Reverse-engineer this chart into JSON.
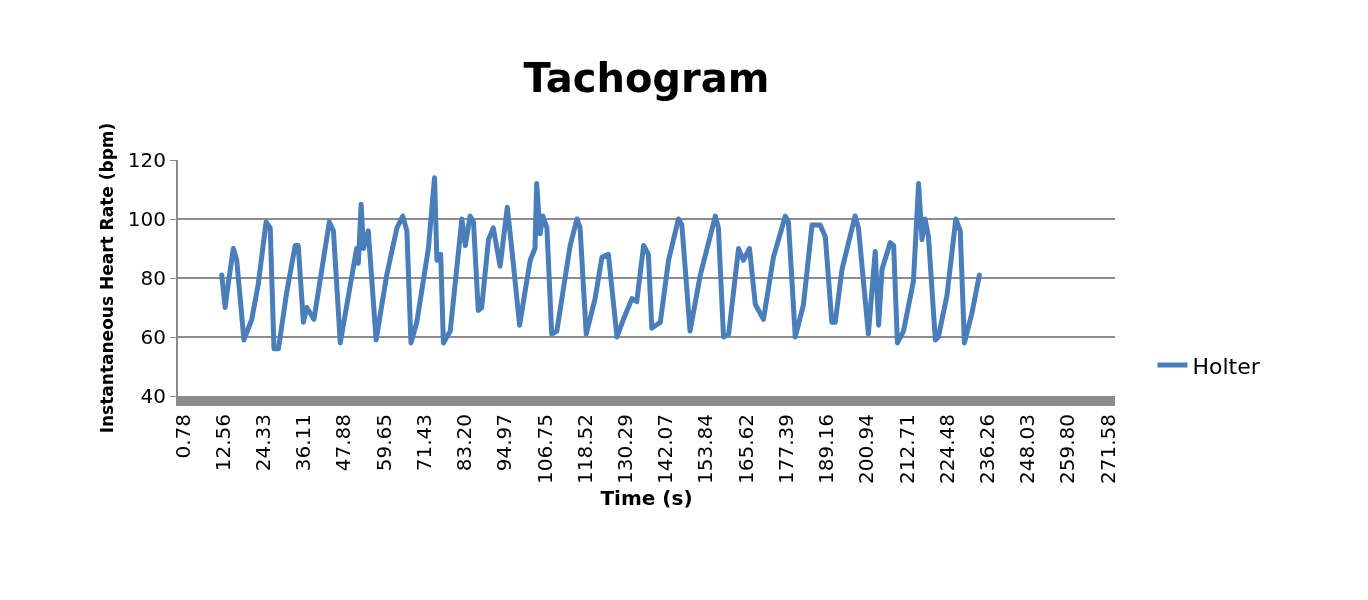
{
  "chart_data": {
    "type": "line",
    "title": "Tachogram",
    "xlabel": "Time (s)",
    "ylabel": "Instantaneous Heart Rate (bpm)",
    "xlim": [
      -0.7,
      273.6
    ],
    "xticks": [
      0.78,
      12.56,
      24.33,
      36.11,
      47.88,
      59.65,
      71.43,
      {
        "value": 83.2,
        "label": "83.20"
      },
      94.97,
      106.75,
      118.52,
      130.29,
      142.07,
      153.84,
      165.62,
      177.39,
      189.16,
      200.94,
      212.71,
      224.48,
      236.26,
      248.03,
      {
        "value": 259.8,
        "label": "259.80"
      },
      271.58
    ],
    "ylim": [
      40,
      120
    ],
    "yticks": [
      40,
      60,
      80,
      100,
      120
    ],
    "grid": "y",
    "legend": "right",
    "marker": "none",
    "line_style": "solid",
    "series": [
      {
        "name": "Holter",
        "color": "#4a7ebb",
        "x": [
          12.1,
          13.1,
          14.0,
          15.5,
          16.5,
          18.6,
          20.9,
          22.8,
          25.1,
          26.3,
          27.4,
          28.7,
          31.1,
          33.6,
          34.5,
          36.0,
          37.0,
          39.1,
          43.6,
          44.8,
          46.8,
          51.6,
          52.1,
          52.9,
          53.6,
          55.0,
          57.3,
          60.4,
          63.4,
          65.1,
          66.3,
          67.5,
          69.2,
          72.6,
          74.4,
          75.1,
          76.2,
          77.0,
          79.0,
          82.4,
          83.4,
          84.8,
          85.8,
          87.2,
          88.2,
          90.2,
          91.6,
          93.6,
          95.7,
          97.0,
          99.3,
          102.4,
          103.8,
          104.3,
          105.3,
          106.1,
          107.3,
          108.7,
          110.2,
          114.1,
          116.1,
          117.0,
          118.8,
          121.4,
          123.4,
          125.3,
          127.8,
          129.7,
          132.2,
          133.6,
          135.6,
          137.0,
          138.0,
          140.5,
          142.9,
          145.8,
          146.8,
          149.2,
          152.2,
          156.6,
          157.5,
          159.0,
          160.5,
          163.4,
          164.8,
          166.6,
          168.3,
          170.7,
          173.6,
          177.1,
          178.0,
          180.0,
          182.4,
          184.9,
          187.3,
          188.8,
          190.7,
          191.7,
          193.7,
          197.5,
          198.5,
          201.4,
          203.4,
          204.4,
          205.4,
          207.8,
          208.8,
          209.9,
          211.7,
          214.6,
          216.1,
          217.1,
          218.0,
          219.0,
          221.0,
          221.9,
          224.4,
          227.0,
          228.3,
          229.5,
          231.7,
          233.9
        ],
        "values": [
          81,
          70,
          78,
          90,
          86,
          59,
          66,
          78,
          99,
          97,
          56,
          56,
          75,
          91,
          91,
          65,
          70,
          66,
          99,
          96,
          58,
          90,
          85,
          105,
          90,
          96,
          59,
          81,
          97,
          101,
          96,
          58,
          65,
          90,
          114,
          86,
          88,
          58,
          62,
          100,
          91,
          101,
          99,
          69,
          70,
          93,
          97,
          84,
          104,
          90,
          64,
          86,
          90,
          112,
          95,
          101,
          97,
          61,
          62,
          91,
          100,
          97,
          61,
          73,
          87,
          88,
          60,
          66,
          73,
          72,
          91,
          88,
          63,
          65,
          86,
          100,
          98,
          62,
          81,
          101,
          97,
          60,
          61,
          90,
          86,
          90,
          71,
          66,
          87,
          101,
          99,
          60,
          71,
          98,
          98,
          94,
          65,
          65,
          83,
          101,
          97,
          61,
          89,
          64,
          83,
          92,
          91,
          58,
          62,
          79,
          112,
          93,
          100,
          94,
          59,
          60,
          74,
          100,
          96,
          58,
          68,
          81
        ]
      }
    ]
  }
}
